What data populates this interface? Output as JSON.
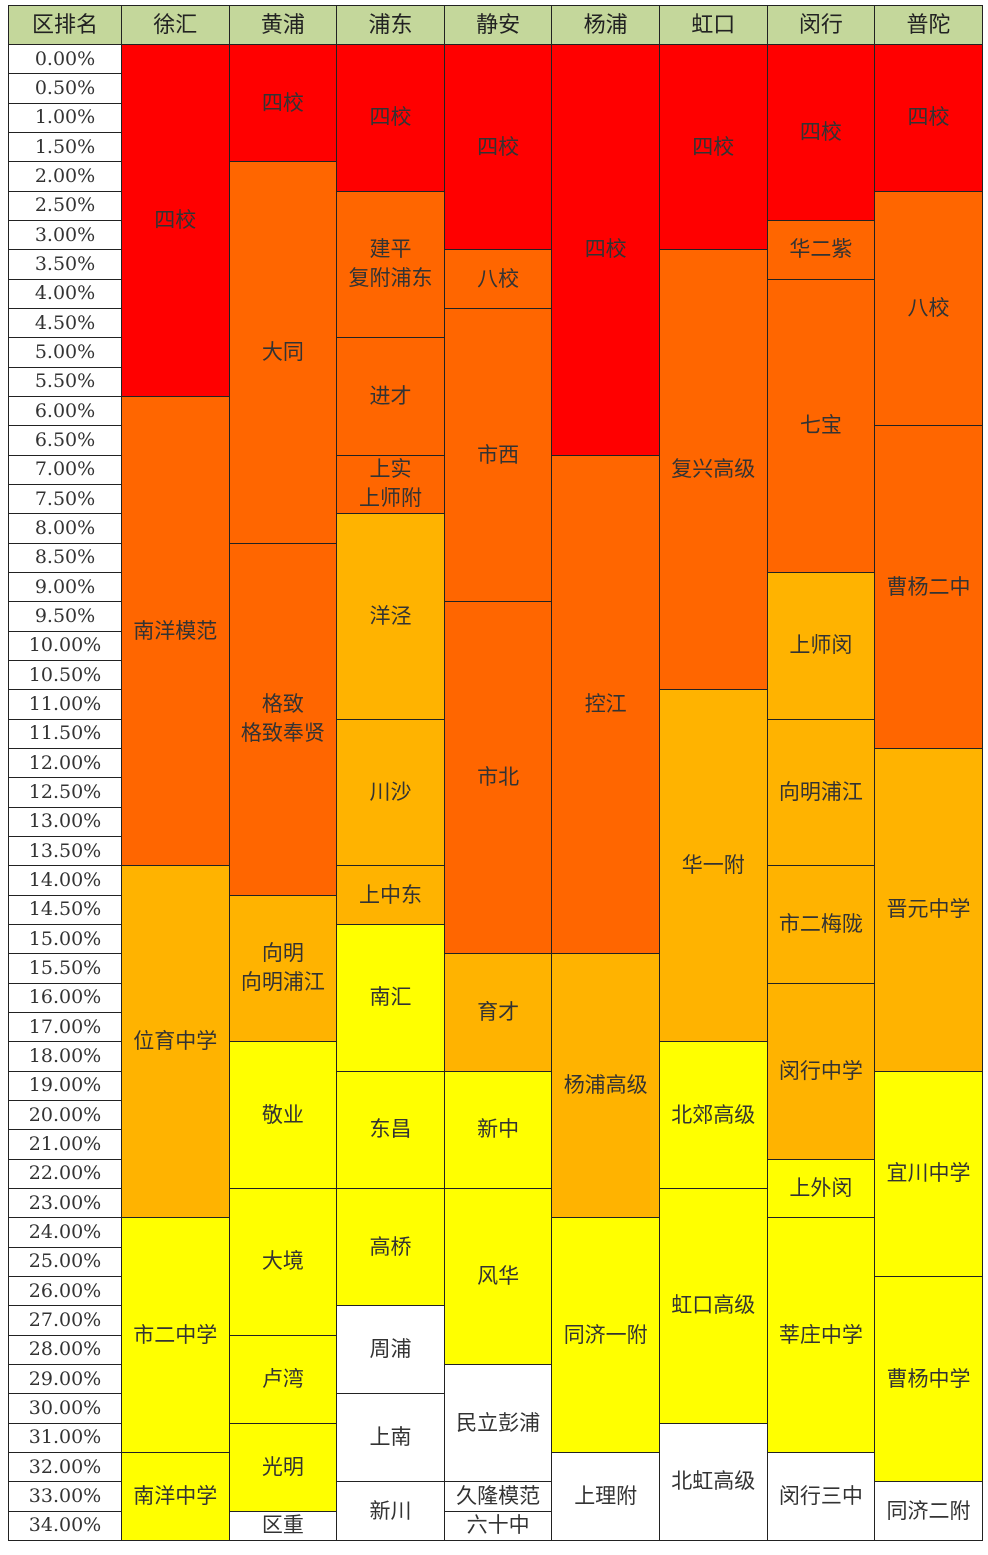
{
  "header": [
    "区排名",
    "徐汇",
    "黄浦",
    "浦东",
    "静安",
    "杨浦",
    "虹口",
    "闵行",
    "普陀"
  ],
  "ranks": [
    "0.00%",
    "0.50%",
    "1.00%",
    "1.50%",
    "2.00%",
    "2.50%",
    "3.00%",
    "3.50%",
    "4.00%",
    "4.50%",
    "5.00%",
    "5.50%",
    "6.00%",
    "6.50%",
    "7.00%",
    "7.50%",
    "8.00%",
    "8.50%",
    "9.00%",
    "9.50%",
    "10.00%",
    "10.50%",
    "11.00%",
    "11.50%",
    "12.00%",
    "12.50%",
    "13.00%",
    "13.50%",
    "14.00%",
    "14.50%",
    "15.00%",
    "15.50%",
    "16.00%",
    "17.00%",
    "18.00%",
    "19.00%",
    "20.00%",
    "21.00%",
    "22.00%",
    "23.00%",
    "24.00%",
    "25.00%",
    "26.00%",
    "27.00%",
    "28.00%",
    "29.00%",
    "30.00%",
    "31.00%",
    "32.00%",
    "33.00%",
    "34.00%"
  ],
  "columns": [
    {
      "blocks": [
        {
          "lines": [
            "四校"
          ],
          "rowspan": 12,
          "color": "#ff0000"
        },
        {
          "lines": [
            "南洋模范"
          ],
          "rowspan": 16,
          "color": "#ff6600"
        },
        {
          "lines": [
            "位育中学"
          ],
          "rowspan": 12,
          "color": "#ffb300"
        },
        {
          "lines": [
            "市二中学"
          ],
          "rowspan": 8,
          "color": "#ffff00"
        },
        {
          "lines": [
            "南洋中学"
          ],
          "rowspan": 3,
          "color": "#ffff00"
        }
      ]
    },
    {
      "blocks": [
        {
          "lines": [
            "四校"
          ],
          "rowspan": 4,
          "color": "#ff0000"
        },
        {
          "lines": [
            "大同"
          ],
          "rowspan": 13,
          "color": "#ff6600"
        },
        {
          "lines": [
            "格致",
            "格致奉贤"
          ],
          "rowspan": 12,
          "color": "#ff6600"
        },
        {
          "lines": [
            "向明",
            "向明浦江"
          ],
          "rowspan": 5,
          "color": "#ffb300"
        },
        {
          "lines": [
            "敬业"
          ],
          "rowspan": 5,
          "color": "#ffff00"
        },
        {
          "lines": [
            "大境"
          ],
          "rowspan": 5,
          "color": "#ffff00"
        },
        {
          "lines": [
            "卢湾"
          ],
          "rowspan": 3,
          "color": "#ffff00"
        },
        {
          "lines": [
            "光明"
          ],
          "rowspan": 3,
          "color": "#ffff00"
        },
        {
          "lines": [
            "区重"
          ],
          "rowspan": 1,
          "color": "#ffffff"
        }
      ]
    },
    {
      "blocks": [
        {
          "lines": [
            "四校"
          ],
          "rowspan": 5,
          "color": "#ff0000"
        },
        {
          "lines": [
            "建平",
            "复附浦东"
          ],
          "rowspan": 5,
          "color": "#ff6600"
        },
        {
          "lines": [
            "进才"
          ],
          "rowspan": 4,
          "color": "#ff6600"
        },
        {
          "lines": [
            "上实",
            "上师附"
          ],
          "rowspan": 2,
          "color": "#ff6600"
        },
        {
          "lines": [
            "洋泾"
          ],
          "rowspan": 7,
          "color": "#ffb300"
        },
        {
          "lines": [
            "川沙"
          ],
          "rowspan": 5,
          "color": "#ffb300"
        },
        {
          "lines": [
            "上中东"
          ],
          "rowspan": 2,
          "color": "#ffb300"
        },
        {
          "lines": [
            "南汇"
          ],
          "rowspan": 5,
          "color": "#ffff00"
        },
        {
          "lines": [
            "东昌"
          ],
          "rowspan": 4,
          "color": "#ffff00"
        },
        {
          "lines": [
            "高桥"
          ],
          "rowspan": 4,
          "color": "#ffff00"
        },
        {
          "lines": [
            "周浦"
          ],
          "rowspan": 3,
          "color": "#ffffff"
        },
        {
          "lines": [
            "上南"
          ],
          "rowspan": 3,
          "color": "#ffffff"
        },
        {
          "lines": [
            "新川"
          ],
          "rowspan": 2,
          "color": "#ffffff"
        }
      ]
    },
    {
      "blocks": [
        {
          "lines": [
            "四校"
          ],
          "rowspan": 7,
          "color": "#ff0000"
        },
        {
          "lines": [
            "八校"
          ],
          "rowspan": 2,
          "color": "#ff6600"
        },
        {
          "lines": [
            "市西"
          ],
          "rowspan": 10,
          "color": "#ff6600"
        },
        {
          "lines": [
            "市北"
          ],
          "rowspan": 12,
          "color": "#ff6600"
        },
        {
          "lines": [
            "育才"
          ],
          "rowspan": 4,
          "color": "#ffb300"
        },
        {
          "lines": [
            "新中"
          ],
          "rowspan": 4,
          "color": "#ffff00"
        },
        {
          "lines": [
            "风华"
          ],
          "rowspan": 6,
          "color": "#ffff00"
        },
        {
          "lines": [
            "民立彭浦"
          ],
          "rowspan": 4,
          "color": "#ffffff"
        },
        {
          "lines": [
            "久隆模范"
          ],
          "rowspan": 1,
          "color": "#ffffff"
        },
        {
          "lines": [
            "六十中"
          ],
          "rowspan": 1,
          "color": "#ffffff"
        }
      ]
    },
    {
      "blocks": [
        {
          "lines": [
            "四校"
          ],
          "rowspan": 14,
          "color": "#ff0000"
        },
        {
          "lines": [
            "控江"
          ],
          "rowspan": 17,
          "color": "#ff6600"
        },
        {
          "lines": [
            "杨浦高级"
          ],
          "rowspan": 9,
          "color": "#ffb300"
        },
        {
          "lines": [
            "同济一附"
          ],
          "rowspan": 8,
          "color": "#ffff00"
        },
        {
          "lines": [
            "上理附"
          ],
          "rowspan": 3,
          "color": "#ffffff"
        }
      ]
    },
    {
      "blocks": [
        {
          "lines": [
            "四校"
          ],
          "rowspan": 7,
          "color": "#ff0000"
        },
        {
          "lines": [
            "复兴高级"
          ],
          "rowspan": 15,
          "color": "#ff6600"
        },
        {
          "lines": [
            "华一附"
          ],
          "rowspan": 12,
          "color": "#ffb300"
        },
        {
          "lines": [
            "北郊高级"
          ],
          "rowspan": 5,
          "color": "#ffff00"
        },
        {
          "lines": [
            "虹口高级"
          ],
          "rowspan": 8,
          "color": "#ffff00"
        },
        {
          "lines": [
            "北虹高级"
          ],
          "rowspan": 4,
          "color": "#ffffff"
        }
      ]
    },
    {
      "blocks": [
        {
          "lines": [
            "四校"
          ],
          "rowspan": 6,
          "color": "#ff0000"
        },
        {
          "lines": [
            "华二紫"
          ],
          "rowspan": 2,
          "color": "#ff6600"
        },
        {
          "lines": [
            "七宝"
          ],
          "rowspan": 10,
          "color": "#ff6600"
        },
        {
          "lines": [
            "上师闵"
          ],
          "rowspan": 5,
          "color": "#ffb300"
        },
        {
          "lines": [
            "向明浦江"
          ],
          "rowspan": 5,
          "color": "#ffb300"
        },
        {
          "lines": [
            "市二梅陇"
          ],
          "rowspan": 4,
          "color": "#ffb300"
        },
        {
          "lines": [
            "闵行中学"
          ],
          "rowspan": 6,
          "color": "#ffb300"
        },
        {
          "lines": [
            "上外闵"
          ],
          "rowspan": 2,
          "color": "#ffff00"
        },
        {
          "lines": [
            "莘庄中学"
          ],
          "rowspan": 8,
          "color": "#ffff00"
        },
        {
          "lines": [
            "闵行三中"
          ],
          "rowspan": 3,
          "color": "#ffffff"
        }
      ]
    },
    {
      "blocks": [
        {
          "lines": [
            "四校"
          ],
          "rowspan": 5,
          "color": "#ff0000"
        },
        {
          "lines": [
            "八校"
          ],
          "rowspan": 8,
          "color": "#ff6600"
        },
        {
          "lines": [
            "曹杨二中"
          ],
          "rowspan": 11,
          "color": "#ff6600"
        },
        {
          "lines": [
            "晋元中学"
          ],
          "rowspan": 11,
          "color": "#ffb300"
        },
        {
          "lines": [
            "宜川中学"
          ],
          "rowspan": 7,
          "color": "#ffff00"
        },
        {
          "lines": [
            "曹杨中学"
          ],
          "rowspan": 7,
          "color": "#ffff00"
        },
        {
          "lines": [
            "同济二附"
          ],
          "rowspan": 2,
          "color": "#ffffff"
        }
      ]
    }
  ]
}
